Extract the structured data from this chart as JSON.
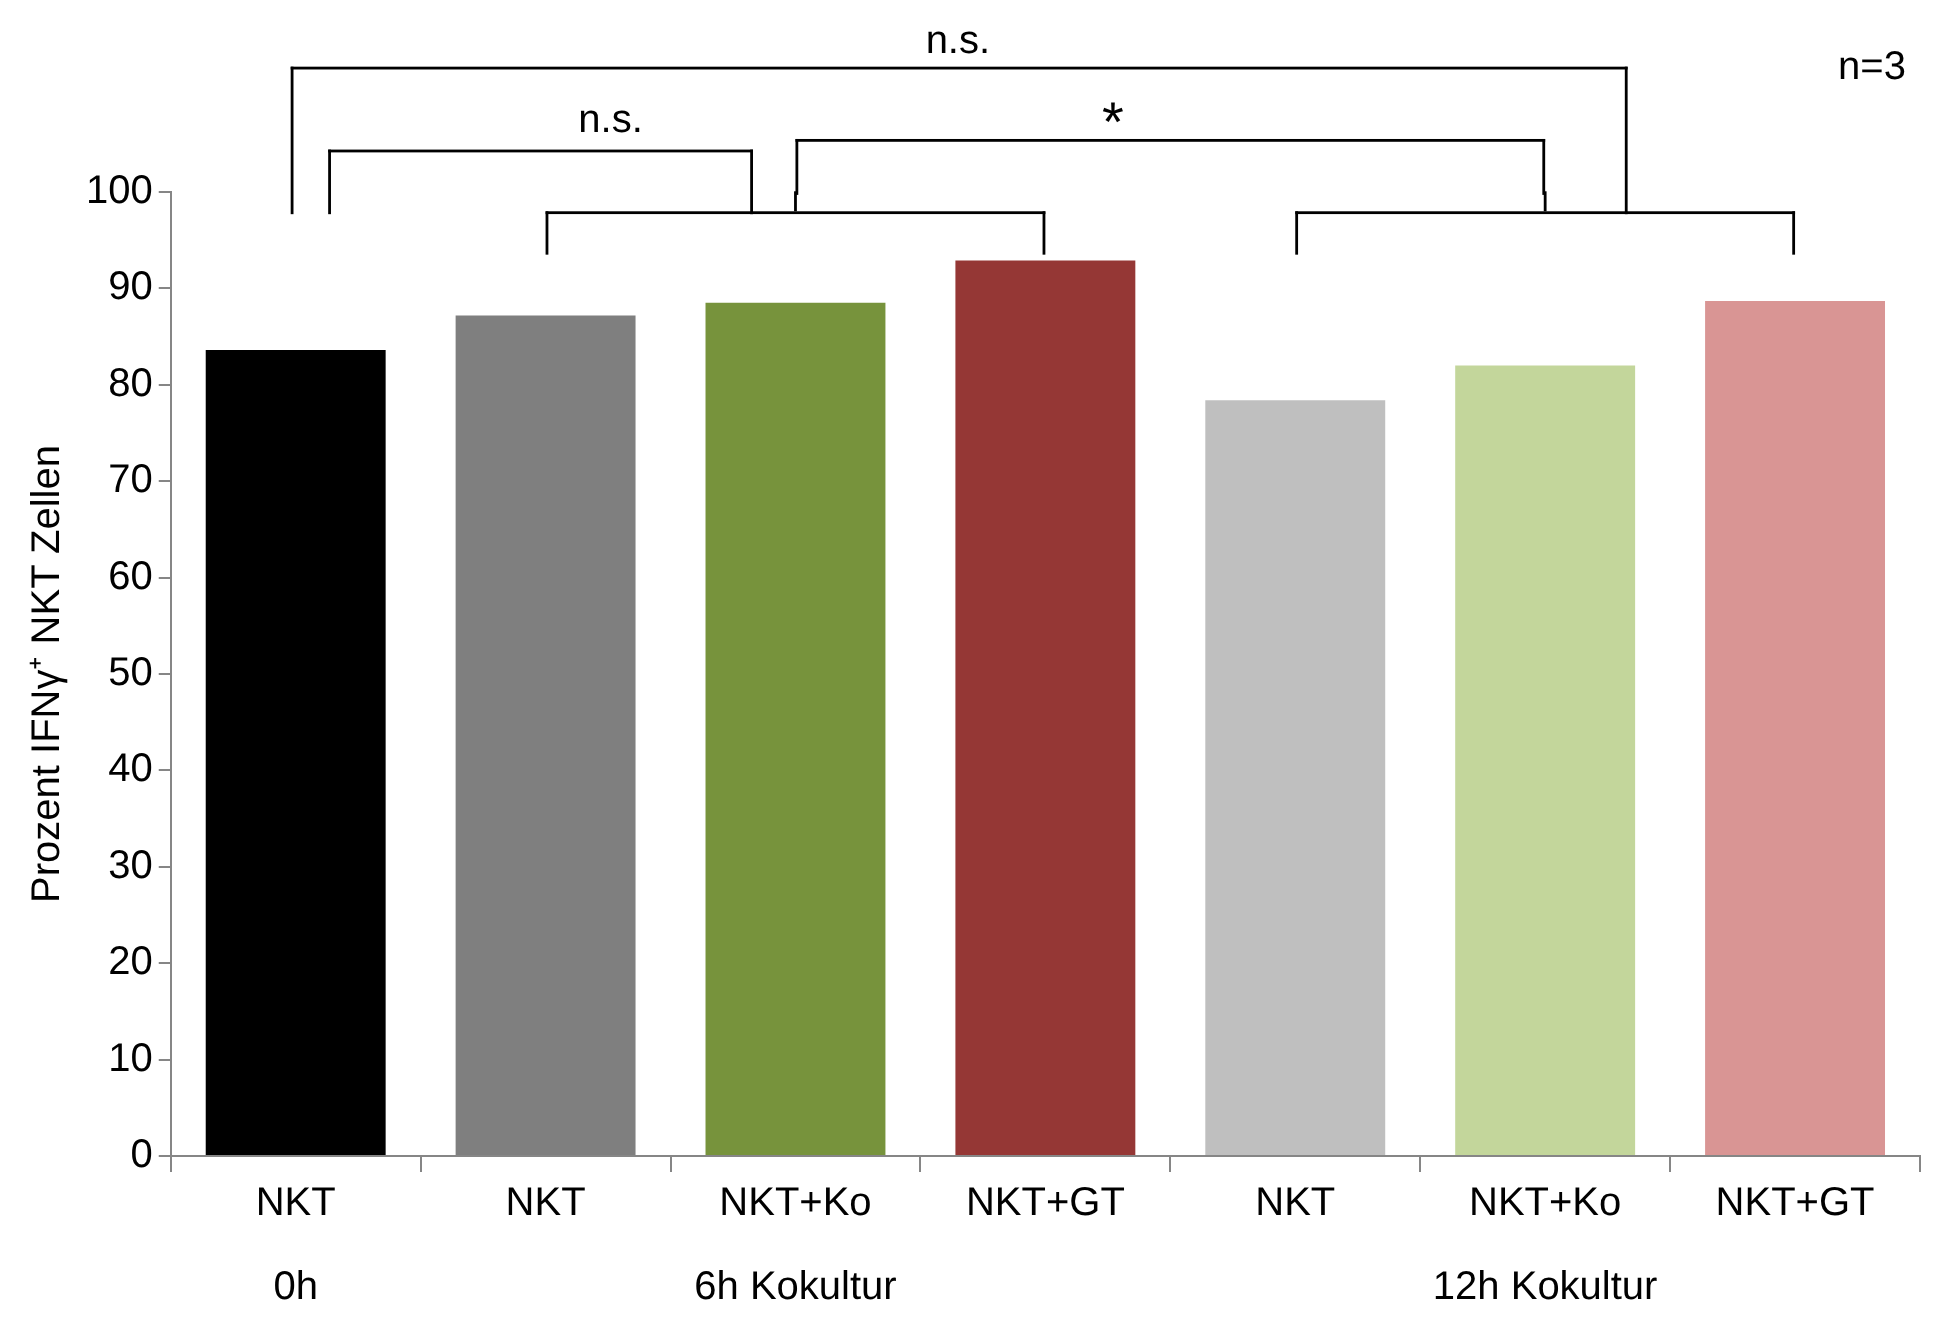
{
  "chart_data": {
    "type": "bar",
    "ylabel": "Prozent IFNγ⁺ NKT Zellen",
    "categories": [
      "NKT",
      "NKT",
      "NKT+Ko",
      "NKT+GT",
      "NKT",
      "NKT+Ko",
      "NKT+GT"
    ],
    "values": [
      83.6,
      87.2,
      88.5,
      92.9,
      78.4,
      82.0,
      88.7
    ],
    "colors": [
      "#000000",
      "#7f7f7f",
      "#77933c",
      "#953735",
      "#bfbfbf",
      "#c3d69b",
      "#d99594"
    ],
    "ylim": [
      0,
      100
    ],
    "yticks": [
      0,
      10,
      20,
      30,
      40,
      50,
      60,
      70,
      80,
      90,
      100
    ],
    "grid": false,
    "legend": false,
    "annotations": [
      "n.s.",
      "n.s.",
      "*",
      "n=3",
      "0h",
      "6h Kokultur",
      "12h Kokultur"
    ]
  }
}
